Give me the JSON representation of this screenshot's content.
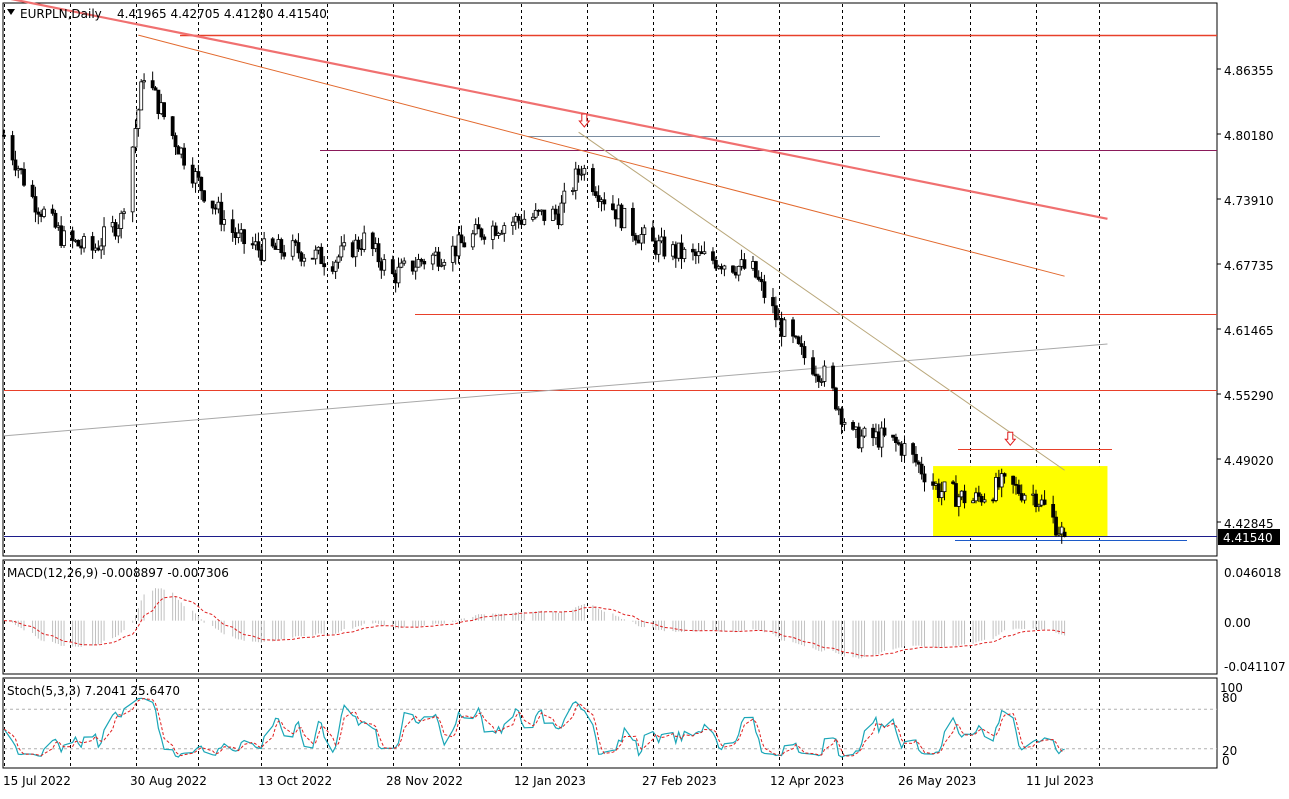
{
  "header": {
    "symbol_timeframe": "EURPLN,Daily",
    "ohlc": "4.41965 4.42705 4.41280 4.41540",
    "menu_icon": "triangle-down-icon"
  },
  "price_axis": {
    "labels": [
      "4.86355",
      "4.80180",
      "4.73910",
      "4.67735",
      "4.61465",
      "4.55290",
      "4.49020",
      "4.42845"
    ],
    "current_price": "4.41540"
  },
  "macd": {
    "title": "MACD(12,26,9) -0.008897 -0.007306",
    "axis_labels": [
      "0.046018",
      "0.00",
      "-0.041107"
    ]
  },
  "stoch": {
    "title": "Stoch(5,3,3) 7.2041 25.6470",
    "axis_labels": [
      "100",
      "80",
      "20",
      "0"
    ]
  },
  "time_axis": {
    "labels": [
      "15 Jul 2022",
      "30 Aug 2022",
      "13 Oct 2022",
      "28 Nov 2022",
      "12 Jan 2023",
      "27 Feb 2023",
      "12 Apr 2023",
      "26 May 2023",
      "11 Jul 2023"
    ]
  },
  "colors": {
    "bull": "#ffffff",
    "bear": "#000000",
    "resistance": "#e8402a",
    "trend_light": "#f07070",
    "trend_orange": "#e2692e",
    "highlight_box": "#ffff00",
    "macd_signal": "#e02020",
    "stoch_main": "#1aa6b7",
    "stoch_signal": "#e02020"
  },
  "chart_data": {
    "type": "candlestick",
    "instrument": "EURPLN",
    "timeframe": "Daily",
    "last_bar": {
      "open": 4.41965,
      "high": 4.42705,
      "low": 4.4128,
      "close": 4.4154
    },
    "price_range": [
      4.412,
      4.905
    ],
    "close_series": {
      "dates": [
        "2022-07-15",
        "2022-07-25",
        "2022-08-05",
        "2022-08-15",
        "2022-08-25",
        "2022-09-02",
        "2022-09-12",
        "2022-09-22",
        "2022-10-05",
        "2022-10-13",
        "2022-10-25",
        "2022-11-07",
        "2022-11-18",
        "2022-11-28",
        "2022-12-08",
        "2022-12-19",
        "2022-12-30",
        "2023-01-12",
        "2023-01-25",
        "2023-02-02",
        "2023-02-10",
        "2023-02-20",
        "2023-02-27",
        "2023-03-10",
        "2023-03-22",
        "2023-04-03",
        "2023-04-12",
        "2023-04-20",
        "2023-04-28",
        "2023-05-08",
        "2023-05-18",
        "2023-05-26",
        "2023-06-07",
        "2023-06-19",
        "2023-06-29",
        "2023-07-11",
        "2023-07-21"
      ],
      "values": [
        4.8,
        4.74,
        4.7,
        4.69,
        4.72,
        4.86,
        4.8,
        4.75,
        4.7,
        4.69,
        4.69,
        4.68,
        4.7,
        4.665,
        4.68,
        4.69,
        4.71,
        4.72,
        4.725,
        4.77,
        4.74,
        4.71,
        4.695,
        4.685,
        4.68,
        4.67,
        4.62,
        4.59,
        4.57,
        4.51,
        4.51,
        4.5,
        4.46,
        4.45,
        4.465,
        4.455,
        4.4154
      ]
    },
    "horizontal_levels": [
      4.896,
      4.786,
      4.629,
      4.556,
      4.499,
      4.416
    ],
    "highlight_zone": {
      "from": "2023-06-05",
      "to": "2023-08-05",
      "price_low": 4.416,
      "price_high": 4.483
    },
    "trendlines": [
      {
        "from": {
          "date": "2022-07-15",
          "price": 4.932
        },
        "to": {
          "date": "2023-08-05",
          "price": 4.72
        }
      },
      {
        "from": {
          "date": "2022-08-31",
          "price": 4.896
        },
        "to": {
          "date": "2023-07-21",
          "price": 4.665
        }
      },
      {
        "from": {
          "date": "2023-02-01",
          "price": 4.803
        },
        "to": {
          "date": "2023-07-21",
          "price": 4.479
        }
      },
      {
        "from": {
          "date": "2022-07-15",
          "price": 4.512
        },
        "to": {
          "date": "2023-08-05",
          "price": 4.6
        }
      }
    ],
    "markers": [
      {
        "type": "arrow-down",
        "date": "2023-02-03",
        "price": 4.808
      },
      {
        "type": "arrow-down",
        "date": "2023-07-02",
        "price": 4.503
      }
    ],
    "macd": {
      "fast": 12,
      "slow": 26,
      "signal": 9,
      "main": -0.008897,
      "signal_value": -0.007306,
      "range": [
        -0.041107,
        0.046018
      ]
    },
    "stochastic": {
      "k": 5,
      "d": 3,
      "slowing": 3,
      "main": 7.2041,
      "signal": 25.647,
      "levels": [
        20,
        80
      ],
      "range": [
        0,
        100
      ]
    }
  }
}
